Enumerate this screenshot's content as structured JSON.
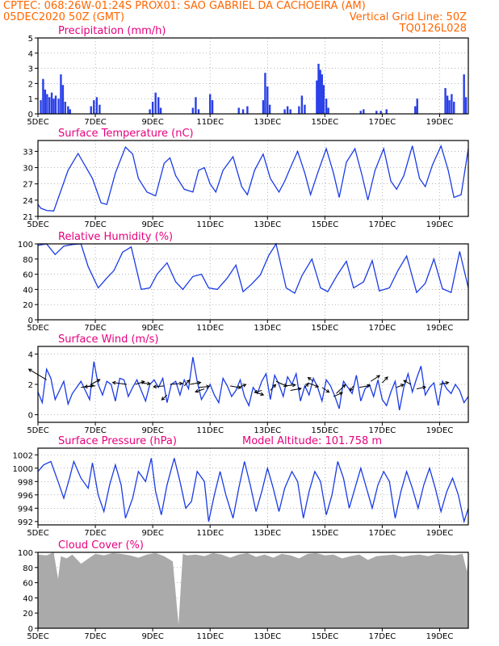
{
  "header": {
    "left_line1": "CPTEC:   068:26W-01:24S   PROX01: SAO GABRIEL DA CACHOEIRA (AM)",
    "left_line2": "05DEC2020 50Z (GMT)",
    "right_line2": "Vertical Grid Line: 50Z",
    "right_line3": "TQ0126L028"
  },
  "colors": {
    "header": "#ff6600",
    "title": "#e6007e",
    "line": "#1a3be6",
    "bar": "#2a40e8",
    "cloud": "#aaaaaa",
    "grid": "#888888",
    "arrow": "#000000"
  },
  "x_ticks": [
    "5DEC",
    "7DEC",
    "9DEC",
    "11DEC",
    "13DEC",
    "15DEC",
    "17DEC",
    "19DEC"
  ],
  "chart_data": [
    {
      "type": "bar",
      "title": "Precipitation (mm/h)",
      "ylim": [
        0,
        5
      ],
      "yticks": [
        0,
        1,
        2,
        3,
        4,
        5
      ],
      "x_range": [
        0,
        15
      ],
      "events": [
        [
          0.1,
          0.9
        ],
        [
          0.18,
          2.3
        ],
        [
          0.25,
          1.6
        ],
        [
          0.32,
          1.3
        ],
        [
          0.4,
          1.1
        ],
        [
          0.48,
          1.4
        ],
        [
          0.55,
          1.0
        ],
        [
          0.62,
          1.2
        ],
        [
          0.72,
          1.0
        ],
        [
          0.8,
          2.6
        ],
        [
          0.87,
          1.9
        ],
        [
          0.95,
          0.8
        ],
        [
          1.05,
          0.5
        ],
        [
          1.12,
          0.3
        ],
        [
          1.85,
          0.5
        ],
        [
          1.95,
          0.9
        ],
        [
          2.05,
          1.1
        ],
        [
          2.15,
          0.6
        ],
        [
          3.9,
          0.3
        ],
        [
          4.0,
          0.8
        ],
        [
          4.1,
          1.4
        ],
        [
          4.2,
          1.1
        ],
        [
          4.28,
          0.4
        ],
        [
          5.4,
          0.4
        ],
        [
          5.5,
          1.1
        ],
        [
          5.6,
          0.3
        ],
        [
          6.0,
          1.3
        ],
        [
          6.08,
          0.9
        ],
        [
          7.0,
          0.4
        ],
        [
          7.15,
          0.3
        ],
        [
          7.3,
          0.5
        ],
        [
          7.85,
          0.9
        ],
        [
          7.92,
          2.7
        ],
        [
          8.0,
          1.8
        ],
        [
          8.08,
          0.6
        ],
        [
          8.6,
          0.3
        ],
        [
          8.7,
          0.5
        ],
        [
          8.8,
          0.3
        ],
        [
          9.1,
          0.5
        ],
        [
          9.2,
          1.2
        ],
        [
          9.3,
          0.6
        ],
        [
          9.72,
          2.2
        ],
        [
          9.78,
          3.3
        ],
        [
          9.84,
          2.9
        ],
        [
          9.9,
          2.6
        ],
        [
          9.96,
          1.9
        ],
        [
          10.05,
          1.0
        ],
        [
          10.12,
          0.4
        ],
        [
          11.25,
          0.2
        ],
        [
          11.35,
          0.3
        ],
        [
          11.8,
          0.2
        ],
        [
          11.95,
          0.2
        ],
        [
          12.15,
          0.3
        ],
        [
          13.15,
          0.5
        ],
        [
          13.22,
          1.0
        ],
        [
          14.2,
          1.7
        ],
        [
          14.27,
          1.2
        ],
        [
          14.34,
          0.9
        ],
        [
          14.42,
          1.3
        ],
        [
          14.5,
          0.8
        ],
        [
          14.85,
          2.6
        ],
        [
          14.92,
          1.1
        ]
      ]
    },
    {
      "type": "line",
      "title": "Surface Temperature (nC)",
      "ylim": [
        21,
        35
      ],
      "yticks": [
        21,
        24,
        27,
        30,
        33
      ],
      "x_range": [
        0,
        15
      ],
      "x": [
        0,
        0.1,
        0.3,
        0.55,
        0.85,
        1.05,
        1.4,
        1.9,
        2.2,
        2.4,
        2.7,
        3.05,
        3.3,
        3.5,
        3.8,
        4.1,
        4.4,
        4.6,
        4.8,
        5.1,
        5.4,
        5.6,
        5.8,
        6.0,
        6.2,
        6.45,
        6.8,
        7.1,
        7.3,
        7.55,
        7.85,
        8.1,
        8.4,
        8.6,
        8.8,
        9.05,
        9.3,
        9.5,
        9.75,
        10.05,
        10.3,
        10.5,
        10.75,
        11.05,
        11.3,
        11.5,
        11.75,
        12.05,
        12.3,
        12.5,
        12.75,
        13.05,
        13.3,
        13.5,
        13.75,
        14.05,
        14.3,
        14.5,
        14.75,
        15.0
      ],
      "y": [
        23.2,
        22.5,
        22.1,
        22.0,
        26.5,
        29.5,
        32.6,
        28.0,
        23.5,
        23.2,
        29.0,
        33.8,
        32.5,
        28.0,
        25.5,
        24.8,
        30.8,
        31.8,
        28.5,
        26.0,
        25.5,
        29.5,
        30.0,
        27.0,
        25.5,
        29.5,
        32.0,
        26.5,
        25.0,
        29.5,
        32.5,
        28.0,
        25.5,
        27.5,
        30.0,
        33.0,
        29.0,
        25.0,
        29.0,
        33.5,
        29.0,
        24.5,
        31.0,
        33.5,
        28.5,
        24.0,
        29.5,
        33.5,
        27.5,
        26.0,
        28.5,
        34.0,
        28.0,
        26.5,
        30.5,
        34.0,
        29.5,
        24.5,
        25.0,
        33.5
      ]
    },
    {
      "type": "line",
      "title": "Relative Humidity (%)",
      "ylim": [
        0,
        100
      ],
      "yticks": [
        0,
        20,
        40,
        60,
        80,
        100
      ],
      "x_range": [
        0,
        15
      ],
      "x": [
        0,
        0.3,
        0.6,
        0.9,
        1.2,
        1.5,
        1.75,
        2.1,
        2.4,
        2.65,
        2.95,
        3.25,
        3.6,
        3.9,
        4.15,
        4.5,
        4.8,
        5.05,
        5.4,
        5.7,
        5.95,
        6.25,
        6.6,
        6.9,
        7.15,
        7.45,
        7.75,
        8.05,
        8.3,
        8.65,
        8.95,
        9.2,
        9.55,
        9.85,
        10.1,
        10.45,
        10.75,
        11.0,
        11.35,
        11.65,
        11.9,
        12.25,
        12.55,
        12.85,
        13.2,
        13.5,
        13.8,
        14.1,
        14.4,
        14.7,
        15.0
      ],
      "y": [
        98,
        100,
        86,
        97,
        99,
        100,
        70,
        42,
        55,
        65,
        89,
        96,
        40,
        42,
        60,
        75,
        50,
        40,
        57,
        60,
        42,
        40,
        55,
        72,
        37,
        47,
        59,
        85,
        100,
        42,
        35,
        58,
        80,
        42,
        37,
        60,
        77,
        42,
        50,
        78,
        38,
        42,
        65,
        84,
        36,
        48,
        80,
        41,
        36,
        90,
        42
      ]
    },
    {
      "type": "line",
      "title": "Surface Wind (m/s)",
      "ylim": [
        -0.5,
        4.5
      ],
      "yticks": [
        0,
        2,
        4
      ],
      "x_range": [
        0,
        15
      ],
      "x": [
        0,
        0.15,
        0.3,
        0.45,
        0.6,
        0.75,
        0.9,
        1.05,
        1.2,
        1.35,
        1.5,
        1.65,
        1.8,
        1.95,
        2.1,
        2.25,
        2.4,
        2.55,
        2.7,
        2.85,
        3.0,
        3.15,
        3.3,
        3.45,
        3.6,
        3.75,
        3.9,
        4.05,
        4.2,
        4.35,
        4.5,
        4.65,
        4.8,
        4.95,
        5.1,
        5.25,
        5.4,
        5.55,
        5.7,
        5.85,
        6.0,
        6.15,
        6.3,
        6.45,
        6.6,
        6.75,
        6.9,
        7.05,
        7.2,
        7.35,
        7.5,
        7.65,
        7.8,
        7.95,
        8.1,
        8.25,
        8.4,
        8.55,
        8.7,
        8.85,
        9.0,
        9.15,
        9.3,
        9.45,
        9.6,
        9.75,
        9.9,
        10.05,
        10.2,
        10.35,
        10.5,
        10.65,
        10.8,
        10.95,
        11.1,
        11.25,
        11.4,
        11.55,
        11.7,
        11.85,
        12.0,
        12.15,
        12.3,
        12.45,
        12.6,
        12.75,
        12.9,
        13.05,
        13.2,
        13.35,
        13.5,
        13.65,
        13.8,
        13.95,
        14.1,
        14.25,
        14.4,
        14.55,
        14.7,
        14.85,
        15.0
      ],
      "y": [
        1.5,
        0.8,
        3.0,
        2.4,
        1.0,
        1.6,
        2.2,
        0.7,
        1.4,
        1.8,
        2.2,
        1.6,
        1.0,
        3.5,
        2.0,
        1.3,
        2.2,
        2.0,
        0.9,
        2.4,
        2.3,
        1.2,
        1.8,
        2.3,
        1.6,
        0.9,
        2.0,
        2.3,
        1.8,
        2.4,
        0.8,
        2.0,
        2.2,
        1.3,
        2.3,
        1.7,
        3.8,
        2.2,
        1.0,
        1.5,
        2.0,
        1.3,
        0.8,
        2.4,
        1.9,
        1.2,
        1.6,
        2.3,
        1.2,
        0.6,
        1.8,
        1.4,
        2.2,
        2.7,
        1.0,
        2.6,
        2.0,
        1.2,
        2.5,
        2.0,
        2.7,
        0.9,
        1.9,
        1.3,
        2.4,
        1.8,
        0.9,
        2.3,
        1.9,
        1.2,
        0.4,
        2.2,
        1.8,
        1.4,
        2.6,
        0.9,
        1.7,
        2.0,
        1.2,
        2.3,
        1.0,
        0.6,
        1.5,
        2.2,
        0.3,
        1.8,
        2.7,
        1.5,
        2.4,
        3.2,
        1.3,
        1.8,
        2.1,
        0.6,
        2.2,
        1.7,
        1.4,
        2.0,
        1.6,
        0.8,
        1.2
      ],
      "arrows": [
        [
          0.3,
          2.3,
          -1.0,
          1.1
        ],
        [
          1.5,
          1.8,
          0.7,
          0.2
        ],
        [
          1.85,
          2.0,
          0.5,
          0.5
        ],
        [
          2.0,
          1.9,
          -0.6,
          -0.1
        ],
        [
          3.1,
          2.0,
          -0.8,
          0.2
        ],
        [
          3.4,
          2.0,
          0.5,
          0.3
        ],
        [
          3.6,
          2.1,
          0.5,
          -0.1
        ],
        [
          4.4,
          1.9,
          -0.6,
          -0.1
        ],
        [
          4.6,
          2.0,
          0.7,
          0.1
        ],
        [
          4.5,
          1.3,
          -0.3,
          -0.5
        ],
        [
          5.1,
          1.9,
          0.3,
          0.6
        ],
        [
          5.3,
          2.0,
          0.6,
          0.2
        ],
        [
          5.6,
          1.8,
          0.6,
          0.1
        ],
        [
          5.8,
          1.7,
          -0.5,
          -0.3
        ],
        [
          6.7,
          1.9,
          0.6,
          -0.2
        ],
        [
          7.0,
          1.8,
          0.4,
          0.3
        ],
        [
          7.55,
          1.5,
          0.5,
          -0.3
        ],
        [
          7.8,
          1.6,
          -0.4,
          -0.2
        ],
        [
          8.1,
          1.6,
          0.3,
          0.6
        ],
        [
          8.3,
          2.2,
          0.6,
          -0.5
        ],
        [
          8.6,
          1.9,
          0.6,
          0.1
        ],
        [
          8.8,
          1.6,
          0.6,
          0.2
        ],
        [
          9.3,
          1.8,
          0.2,
          0.4
        ],
        [
          9.4,
          2.1,
          0.6,
          -0.4
        ],
        [
          9.6,
          2.2,
          -0.3,
          0.4
        ],
        [
          9.9,
          1.8,
          0.4,
          -0.5
        ],
        [
          10.3,
          1.2,
          0.5,
          0.4
        ],
        [
          10.4,
          1.4,
          0.5,
          0.9
        ],
        [
          11.0,
          1.9,
          -0.2,
          -0.5
        ],
        [
          11.2,
          1.8,
          0.6,
          0.2
        ],
        [
          11.6,
          2.2,
          0.5,
          0.6
        ],
        [
          12.0,
          2.1,
          0.3,
          0.6
        ],
        [
          12.5,
          1.8,
          0.4,
          0.3
        ],
        [
          13.0,
          2.0,
          -0.4,
          0.4
        ],
        [
          13.2,
          1.7,
          0.5,
          0.2
        ],
        [
          14.0,
          2.0,
          0.5,
          0.2
        ]
      ]
    },
    {
      "type": "line",
      "title": "Surface Pressure (hPa)",
      "annotation": "Model Altitude: 101.758  m",
      "ylim": [
        991.5,
        1003
      ],
      "yticks": [
        992,
        994,
        996,
        998,
        1000,
        1002
      ],
      "x_range": [
        0,
        15
      ],
      "x": [
        0,
        0.2,
        0.45,
        0.7,
        0.9,
        1.1,
        1.25,
        1.5,
        1.75,
        1.9,
        2.1,
        2.3,
        2.5,
        2.7,
        2.9,
        3.05,
        3.3,
        3.5,
        3.75,
        3.95,
        4.1,
        4.3,
        4.5,
        4.75,
        4.95,
        5.15,
        5.35,
        5.55,
        5.8,
        5.95,
        6.15,
        6.35,
        6.55,
        6.8,
        7.0,
        7.2,
        7.4,
        7.6,
        7.8,
        8.0,
        8.2,
        8.4,
        8.6,
        8.85,
        9.05,
        9.25,
        9.45,
        9.65,
        9.85,
        10.05,
        10.25,
        10.45,
        10.65,
        10.85,
        11.05,
        11.25,
        11.45,
        11.65,
        11.85,
        12.05,
        12.25,
        12.45,
        12.65,
        12.85,
        13.05,
        13.25,
        13.45,
        13.65,
        13.85,
        14.05,
        14.25,
        14.45,
        14.65,
        14.85,
        15.0
      ],
      "y": [
        999.5,
        1000.5,
        1001.0,
        998.0,
        995.5,
        998.5,
        1001.0,
        998.5,
        997.0,
        1000.8,
        996.0,
        993.5,
        997.5,
        1000.5,
        997.5,
        992.5,
        995.5,
        999.5,
        998.0,
        1001.5,
        996.5,
        993.0,
        997.5,
        1001.5,
        998.0,
        994.0,
        995.0,
        999.5,
        998.0,
        992.0,
        996.0,
        999.5,
        996.0,
        992.5,
        997.0,
        1001.0,
        997.5,
        993.5,
        996.5,
        1000.0,
        997.0,
        993.5,
        997.0,
        999.5,
        998.0,
        992.5,
        996.5,
        999.5,
        998.0,
        993.0,
        996.0,
        1001.0,
        998.5,
        994.0,
        997.0,
        1000.0,
        997.0,
        994.0,
        997.5,
        999.5,
        998.0,
        992.5,
        996.5,
        999.5,
        997.0,
        994.0,
        997.5,
        1000.0,
        997.0,
        993.5,
        996.5,
        998.5,
        996.0,
        992.0,
        994.0
      ]
    },
    {
      "type": "area",
      "title": "Cloud Cover (%)",
      "ylim": [
        0,
        100
      ],
      "yticks": [
        0,
        20,
        40,
        60,
        80,
        100
      ],
      "x_range": [
        0,
        15
      ],
      "x": [
        0,
        0.3,
        0.55,
        0.7,
        0.8,
        1.0,
        1.2,
        1.5,
        1.8,
        2.0,
        2.3,
        2.6,
        2.9,
        3.2,
        3.5,
        3.8,
        4.1,
        4.4,
        4.7,
        4.9,
        5.05,
        5.2,
        5.5,
        5.8,
        6.1,
        6.4,
        6.7,
        7.0,
        7.3,
        7.6,
        7.9,
        8.2,
        8.5,
        8.8,
        9.1,
        9.4,
        9.7,
        10.0,
        10.3,
        10.6,
        10.9,
        11.2,
        11.5,
        11.8,
        12.1,
        12.4,
        12.7,
        13.0,
        13.3,
        13.6,
        13.9,
        14.2,
        14.5,
        14.8,
        14.95,
        15.0
      ],
      "y": [
        97,
        96,
        100,
        65,
        95,
        92,
        97,
        85,
        93,
        98,
        96,
        99,
        98,
        96,
        93,
        97,
        99,
        95,
        88,
        5,
        98,
        96,
        97,
        95,
        99,
        97,
        93,
        97,
        99,
        94,
        97,
        93,
        98,
        96,
        92,
        98,
        99,
        96,
        97,
        92,
        95,
        97,
        90,
        95,
        96,
        97,
        94,
        96,
        97,
        95,
        98,
        97,
        96,
        98,
        75,
        92
      ]
    }
  ]
}
